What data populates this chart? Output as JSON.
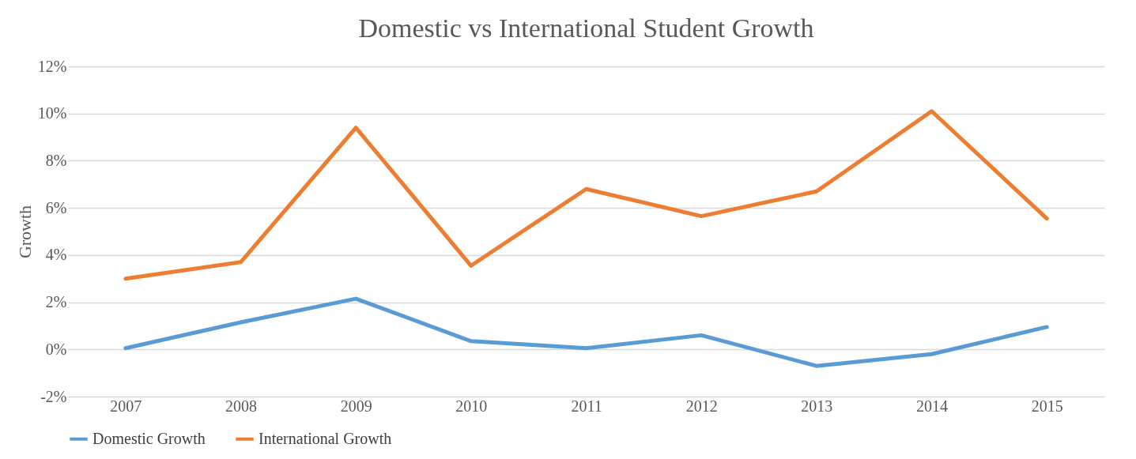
{
  "chart_data": {
    "type": "line",
    "title": "Domestic vs International Student Growth",
    "ylabel": "Growth",
    "categories": [
      "2007",
      "2008",
      "2009",
      "2010",
      "2011",
      "2012",
      "2013",
      "2014",
      "2015"
    ],
    "series": [
      {
        "name": "Domestic Growth",
        "color": "#5b9bd5",
        "values": [
          0.05,
          1.15,
          2.15,
          0.35,
          0.05,
          0.6,
          -0.7,
          -0.2,
          0.95
        ]
      },
      {
        "name": "International Growth",
        "color": "#ed7d31",
        "values": [
          3.0,
          3.7,
          9.4,
          3.55,
          6.8,
          5.65,
          6.7,
          10.1,
          5.55
        ]
      }
    ],
    "ylim": [
      -2,
      12
    ],
    "yticks": [
      {
        "value": -2,
        "label": "-2%"
      },
      {
        "value": 0,
        "label": "0%"
      },
      {
        "value": 2,
        "label": "2%"
      },
      {
        "value": 4,
        "label": "4%"
      },
      {
        "value": 6,
        "label": "6%"
      },
      {
        "value": 8,
        "label": "8%"
      },
      {
        "value": 10,
        "label": "10%"
      },
      {
        "value": 12,
        "label": "12%"
      }
    ],
    "grid": "y",
    "legend": "bottom",
    "marker": "none",
    "line_style": "solid"
  }
}
